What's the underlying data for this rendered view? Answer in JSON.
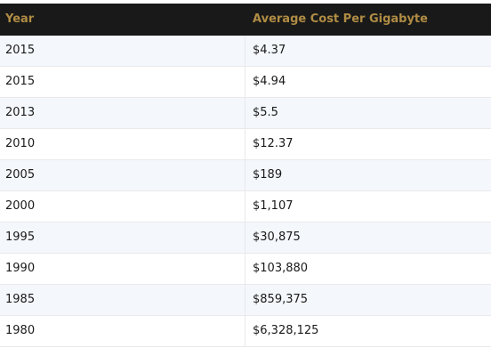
{
  "chart_data": {
    "type": "table",
    "columns": [
      "Year",
      "Average Cost Per Gigabyte"
    ],
    "rows": [
      [
        "2015",
        "$4.37"
      ],
      [
        "2015",
        "$4.94"
      ],
      [
        "2013",
        "$5.5"
      ],
      [
        "2010",
        "$12.37"
      ],
      [
        "2005",
        "$189"
      ],
      [
        "2000",
        "$1,107"
      ],
      [
        "1995",
        "$30,875"
      ],
      [
        "1990",
        "$103,880"
      ],
      [
        "1985",
        "$859,375"
      ],
      [
        "1980",
        "$6,328,125"
      ]
    ]
  },
  "colors": {
    "header_background": "#191919",
    "header_text": "#b08c44",
    "striped_row": "#f4f7fb"
  }
}
